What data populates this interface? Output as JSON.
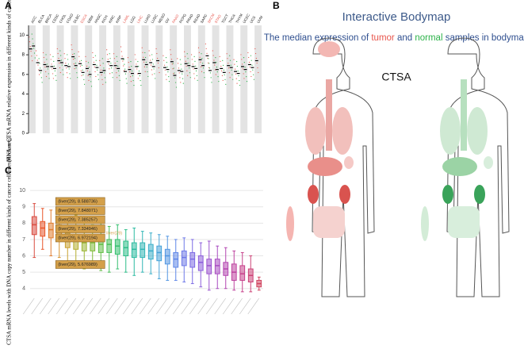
{
  "panel_labels": [
    "A",
    "B",
    "C"
  ],
  "bodymap": {
    "title": "Interactive Bodymap",
    "subtitle": [
      {
        "text": "The median expression of ",
        "color": "#2f4f8f"
      },
      {
        "text": "tumor",
        "color": "#e8564d"
      },
      {
        "text": " and ",
        "color": "#2f4f8f"
      },
      {
        "text": "normal",
        "color": "#2db34a"
      },
      {
        "text": " samples in bodymap",
        "color": "#2f4f8f"
      }
    ],
    "gene": "CTSA"
  },
  "chart_data": [
    {
      "type": "dot",
      "ylabel": "Median CTSA mRNA relative expression in different kinds of cancer",
      "categories": [
        "ACC",
        "BLCA",
        "BRCA",
        "CESC",
        "CHOL",
        "COAD",
        "DLBC",
        "ESCA",
        "GBM",
        "HNSC",
        "KICH",
        "KIRC",
        "KIRP",
        "LAML",
        "LGG",
        "LIHC",
        "LUAD",
        "LUSC",
        "MESO",
        "OV",
        "PAAD",
        "PCPG",
        "PRAD",
        "READ",
        "SARC",
        "SKCM",
        "STAD",
        "TGCT",
        "THCA",
        "THYM",
        "UCEC",
        "UCS",
        "UVM"
      ],
      "highlight_color": "#e8564d",
      "highlighted": [
        "ESCA",
        "LAML",
        "LIHC",
        "PAAD",
        "SKCM",
        "STAD"
      ],
      "series": [
        {
          "name": "tumor",
          "color": "#e8564d",
          "values": [
            8.6,
            7.2,
            7.0,
            6.8,
            7.4,
            6.9,
            7.8,
            7.1,
            6.6,
            7.0,
            6.2,
            7.3,
            6.9,
            7.6,
            6.5,
            6.8,
            7.5,
            7.2,
            7.4,
            6.7,
            7.3,
            6.4,
            7.1,
            6.8,
            7.5,
            7.9,
            7.2,
            6.6,
            6.9,
            6.3,
            6.8,
            7.0,
            7.4
          ]
        },
        {
          "name": "normal",
          "color": "#2db34a",
          "values": [
            8.9,
            6.4,
            6.8,
            6.6,
            7.2,
            6.8,
            6.9,
            6.2,
            6.0,
            6.7,
            6.4,
            6.9,
            6.6,
            6.3,
            6.1,
            6.1,
            7.0,
            6.8,
            null,
            6.5,
            5.9,
            6.3,
            6.9,
            6.6,
            6.9,
            6.4,
            6.5,
            6.2,
            6.7,
            6.1,
            6.5,
            6.7,
            null
          ]
        }
      ],
      "ylim": [
        0,
        11
      ],
      "yticks": [
        0,
        2,
        4,
        6,
        8,
        10
      ],
      "grid": false
    },
    {
      "type": "box",
      "ylabel": "CTSA mRNA levels with DNA copy number in different kinds of cancer cell lines(RNA-seq)",
      "categories": [
        null,
        null,
        null,
        null,
        null,
        null,
        null,
        null,
        null,
        null,
        null,
        null,
        null,
        null,
        null,
        null,
        null,
        null,
        null,
        null,
        null,
        null,
        null,
        null,
        null,
        null,
        null,
        null
      ],
      "boxes": [
        {
          "min": 5.9,
          "q1": 7.3,
          "median": 7.9,
          "q3": 8.4,
          "max": 9.2,
          "color": "#d94a3f"
        },
        {
          "min": 6.4,
          "q1": 7.2,
          "median": 7.7,
          "q3": 8.1,
          "max": 8.9,
          "color": "#e8562a"
        },
        {
          "min": 6.0,
          "q1": 7.1,
          "median": 7.6,
          "q3": 8.0,
          "max": 8.8,
          "color": "#e07b2d"
        },
        {
          "min": 5.9,
          "q1": 6.9,
          "median": 7.5,
          "q3": 7.9,
          "max": 8.6,
          "color": "#d9932e"
        },
        {
          "min": 5.5,
          "q1": 6.5,
          "median": 7.0,
          "q3": 7.4,
          "max": 8.3,
          "color": "#c9a12e"
        },
        {
          "min": 5.4,
          "q1": 6.4,
          "median": 6.9,
          "q3": 7.3,
          "max": 8.5,
          "color": "#b5ae2f"
        },
        {
          "min": 5.2,
          "q1": 6.3,
          "median": 6.8,
          "q3": 7.2,
          "max": 8.0,
          "color": "#9bb533"
        },
        {
          "min": 5.3,
          "q1": 6.3,
          "median": 6.8,
          "q3": 7.1,
          "max": 7.9,
          "color": "#7fba3a"
        },
        {
          "min": 5.1,
          "q1": 6.2,
          "median": 6.7,
          "q3": 7.1,
          "max": 8.0,
          "color": "#62bd45"
        },
        {
          "min": 5.0,
          "q1": 6.2,
          "median": 6.7,
          "q3": 7.0,
          "max": 7.8,
          "color": "#48bf58"
        },
        {
          "min": 5.2,
          "q1": 6.1,
          "median": 6.6,
          "q3": 7.0,
          "max": 7.9,
          "color": "#35bf6f"
        },
        {
          "min": 5.0,
          "q1": 6.0,
          "median": 6.5,
          "q3": 6.9,
          "max": 7.6,
          "color": "#2cbe88"
        },
        {
          "min": 4.8,
          "q1": 5.9,
          "median": 6.4,
          "q3": 6.8,
          "max": 7.7,
          "color": "#2bbba0"
        },
        {
          "min": 5.0,
          "q1": 5.9,
          "median": 6.4,
          "q3": 6.8,
          "max": 7.5,
          "color": "#31b6b6"
        },
        {
          "min": 4.9,
          "q1": 5.8,
          "median": 6.3,
          "q3": 6.7,
          "max": 7.4,
          "color": "#3aaec9"
        },
        {
          "min": 4.6,
          "q1": 5.7,
          "median": 6.2,
          "q3": 6.6,
          "max": 7.3,
          "color": "#45a3d8"
        },
        {
          "min": 4.5,
          "q1": 5.5,
          "median": 6.0,
          "q3": 6.4,
          "max": 7.2,
          "color": "#5296e2"
        },
        {
          "min": 4.5,
          "q1": 5.3,
          "median": 5.8,
          "q3": 6.2,
          "max": 7.0,
          "color": "#5f87e7"
        },
        {
          "min": 4.4,
          "q1": 5.4,
          "median": 5.9,
          "q3": 6.3,
          "max": 7.1,
          "color": "#6d78e8"
        },
        {
          "min": 4.3,
          "q1": 5.3,
          "median": 5.8,
          "q3": 6.2,
          "max": 7.0,
          "color": "#7c6ae4"
        },
        {
          "min": 4.1,
          "q1": 5.1,
          "median": 5.6,
          "q3": 6.0,
          "max": 6.8,
          "color": "#8c5edb"
        },
        {
          "min": 3.9,
          "q1": 4.9,
          "median": 5.4,
          "q3": 5.8,
          "max": 6.9,
          "color": "#9b54cf"
        },
        {
          "min": 4.0,
          "q1": 4.9,
          "median": 5.4,
          "q3": 5.8,
          "max": 6.6,
          "color": "#a84cc1"
        },
        {
          "min": 4.0,
          "q1": 4.8,
          "median": 5.2,
          "q3": 5.6,
          "max": 6.5,
          "color": "#b446b1"
        },
        {
          "min": 3.9,
          "q1": 4.5,
          "median": 5.0,
          "q3": 5.5,
          "max": 6.3,
          "color": "#be429f"
        },
        {
          "min": 3.8,
          "q1": 4.5,
          "median": 4.9,
          "q3": 5.4,
          "max": 6.2,
          "color": "#c6418b"
        },
        {
          "min": 3.8,
          "q1": 4.4,
          "median": 4.8,
          "q3": 5.2,
          "max": 6.0,
          "color": "#cc4276"
        },
        {
          "min": 3.9,
          "q1": 4.1,
          "median": 4.3,
          "q3": 4.5,
          "max": 4.7,
          "color": "#d04560"
        }
      ],
      "annotations": [
        "(liver(29), 8.588736)",
        "(liver(29), 7.848071)",
        "(liver(29), 7.385257)",
        "(liver(29), 7.334946)",
        "(liver(29), 6.972194)",
        "(liver(29), 5.676989)"
      ],
      "hover_label": "liver(29)",
      "ylim": [
        3.6,
        10.2
      ],
      "yticks": [
        4,
        5,
        6,
        7,
        8,
        9,
        10
      ],
      "grid": true
    }
  ]
}
